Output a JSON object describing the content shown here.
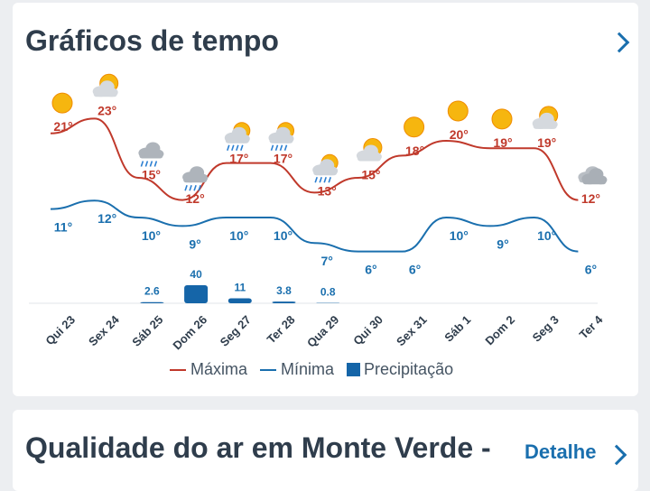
{
  "card1": {
    "title": "Gráficos de tempo"
  },
  "card2": {
    "title": "Qualidade do ar em Monte Verde -",
    "link": "Detalhe"
  },
  "legend": {
    "max": "Máxima",
    "min": "Mínima",
    "precip": "Precipitação"
  },
  "colors": {
    "max": "#c0392b",
    "min": "#1a6fae",
    "precip": "#1565a8",
    "text": "#2f3d4c"
  },
  "chart_data": {
    "type": "line",
    "categories": [
      "Qui 23",
      "Sex 24",
      "Sáb 25",
      "Dom 26",
      "Seg 27",
      "Ter 28",
      "Qua 29",
      "Qui 30",
      "Sex 31",
      "Sáb 1",
      "Dom 2",
      "Seg 3",
      "Ter 4"
    ],
    "series": [
      {
        "name": "Máxima",
        "values": [
          21,
          23,
          15,
          12,
          17,
          17,
          13,
          15,
          18,
          20,
          19,
          19,
          12
        ],
        "labels": [
          "21°",
          "23°",
          "15°",
          "12°",
          "17°",
          "17°",
          "13°",
          "15°",
          "18°",
          "20°",
          "19°",
          "19°",
          "12°"
        ]
      },
      {
        "name": "Mínima",
        "values": [
          11,
          12,
          10,
          9,
          10,
          10,
          7,
          6,
          6,
          10,
          9,
          10,
          6
        ],
        "labels": [
          "11°",
          "12°",
          "10°",
          "9°",
          "10°",
          "10°",
          "7°",
          "6°",
          "6°",
          "10°",
          "9°",
          "10°",
          "6°"
        ]
      },
      {
        "name": "Precipitação",
        "values": [
          0,
          0,
          2.6,
          40,
          11,
          3.8,
          0.8,
          0,
          0,
          0,
          0,
          0,
          0
        ],
        "labels": [
          "",
          "",
          "2.6",
          "40",
          "11",
          "3.8",
          "0.8",
          "",
          "",
          "",
          "",
          "",
          ""
        ]
      }
    ],
    "icons": [
      "sun-icon",
      "partly-cloudy-icon",
      "cloud-rain-icon",
      "cloud-rain-icon",
      "partly-cloudy-rain-icon",
      "partly-cloudy-rain-icon",
      "partly-cloudy-rain-icon",
      "partly-cloudy-icon",
      "sun-icon",
      "sun-icon",
      "sun-icon",
      "partly-cloudy-icon",
      "cloudy-icon"
    ]
  }
}
